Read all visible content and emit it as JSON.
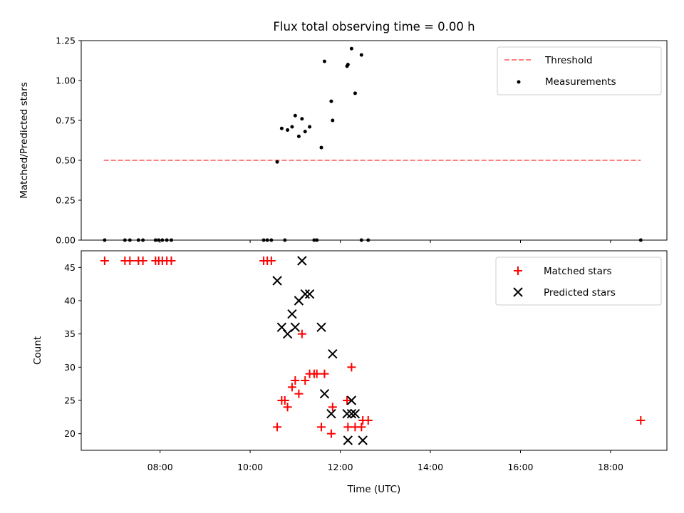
{
  "colors": {
    "threshold": "#ff8080",
    "measurement": "#000000",
    "matched": "#ff0000",
    "predicted": "#000000"
  },
  "chart_data": [
    {
      "type": "scatter",
      "title": "Flux total observing time = 0.00 h",
      "xlabel": "",
      "ylabel": "Matched/Predicted stars",
      "xlim": [
        6.25,
        19.25
      ],
      "ylim": [
        0.0,
        1.25
      ],
      "yticks": [
        "0.00",
        "0.25",
        "0.50",
        "0.75",
        "1.00",
        "1.25"
      ],
      "grid": false,
      "legend_position": "top-right",
      "series": [
        {
          "name": "Threshold",
          "style": "dashed-line",
          "x": [
            6.75,
            18.67
          ],
          "y": [
            0.5,
            0.5
          ]
        },
        {
          "name": "Measurements",
          "style": "dot",
          "points": [
            [
              6.77,
              0.0
            ],
            [
              7.22,
              0.0
            ],
            [
              7.33,
              0.0
            ],
            [
              7.52,
              0.0
            ],
            [
              7.62,
              0.0
            ],
            [
              7.9,
              0.0
            ],
            [
              7.97,
              0.0
            ],
            [
              8.05,
              0.0
            ],
            [
              8.15,
              0.0
            ],
            [
              8.25,
              0.0
            ],
            [
              10.3,
              0.0
            ],
            [
              10.38,
              0.0
            ],
            [
              10.47,
              0.0
            ],
            [
              10.6,
              0.49
            ],
            [
              10.7,
              0.7
            ],
            [
              10.77,
              0.0
            ],
            [
              10.83,
              0.69
            ],
            [
              10.93,
              0.71
            ],
            [
              11.0,
              0.78
            ],
            [
              11.08,
              0.65
            ],
            [
              11.15,
              0.76
            ],
            [
              11.22,
              0.68
            ],
            [
              11.32,
              0.71
            ],
            [
              11.42,
              0.0
            ],
            [
              11.48,
              0.0
            ],
            [
              11.58,
              0.58
            ],
            [
              11.65,
              1.12
            ],
            [
              11.8,
              0.87
            ],
            [
              11.83,
              0.75
            ],
            [
              12.15,
              1.09
            ],
            [
              12.17,
              1.1
            ],
            [
              12.25,
              1.2
            ],
            [
              12.33,
              0.92
            ],
            [
              12.47,
              1.16
            ],
            [
              12.47,
              0.0
            ],
            [
              12.62,
              0.0
            ],
            [
              18.67,
              0.0
            ]
          ]
        }
      ]
    },
    {
      "type": "scatter",
      "title": "",
      "xlabel": "Time (UTC)",
      "ylabel": "Count",
      "xlim": [
        6.25,
        19.25
      ],
      "ylim": [
        17.5,
        47.5
      ],
      "xticks": [
        "08:00",
        "10:00",
        "12:00",
        "14:00",
        "16:00",
        "18:00"
      ],
      "yticks": [
        "20",
        "25",
        "30",
        "35",
        "40",
        "45"
      ],
      "grid": false,
      "legend_position": "top-right",
      "series": [
        {
          "name": "Matched stars",
          "style": "plus",
          "points": [
            [
              6.77,
              46
            ],
            [
              7.22,
              46
            ],
            [
              7.33,
              46
            ],
            [
              7.52,
              46
            ],
            [
              7.62,
              46
            ],
            [
              7.9,
              46
            ],
            [
              7.97,
              46
            ],
            [
              8.05,
              46
            ],
            [
              8.15,
              46
            ],
            [
              8.25,
              46
            ],
            [
              10.3,
              46
            ],
            [
              10.38,
              46
            ],
            [
              10.47,
              46
            ],
            [
              10.6,
              21
            ],
            [
              10.7,
              25
            ],
            [
              10.77,
              25
            ],
            [
              10.83,
              24
            ],
            [
              10.93,
              27
            ],
            [
              11.0,
              28
            ],
            [
              11.08,
              26
            ],
            [
              11.15,
              35
            ],
            [
              11.22,
              28
            ],
            [
              11.32,
              29
            ],
            [
              11.42,
              29
            ],
            [
              11.48,
              29
            ],
            [
              11.58,
              21
            ],
            [
              11.65,
              29
            ],
            [
              11.8,
              20
            ],
            [
              11.83,
              24
            ],
            [
              12.15,
              25
            ],
            [
              12.17,
              21
            ],
            [
              12.25,
              30
            ],
            [
              12.33,
              21
            ],
            [
              12.47,
              21
            ],
            [
              12.5,
              22
            ],
            [
              12.62,
              22
            ],
            [
              18.67,
              22
            ]
          ]
        },
        {
          "name": "Predicted stars",
          "style": "x",
          "points": [
            [
              10.6,
              43
            ],
            [
              10.7,
              36
            ],
            [
              10.83,
              35
            ],
            [
              10.93,
              38
            ],
            [
              11.0,
              36
            ],
            [
              11.08,
              40
            ],
            [
              11.15,
              46
            ],
            [
              11.22,
              41
            ],
            [
              11.32,
              41
            ],
            [
              11.58,
              36
            ],
            [
              11.65,
              26
            ],
            [
              11.8,
              23
            ],
            [
              11.83,
              32
            ],
            [
              12.15,
              23
            ],
            [
              12.17,
              19
            ],
            [
              12.25,
              23
            ],
            [
              12.25,
              25
            ],
            [
              12.33,
              23
            ],
            [
              12.5,
              19
            ]
          ]
        }
      ]
    }
  ]
}
